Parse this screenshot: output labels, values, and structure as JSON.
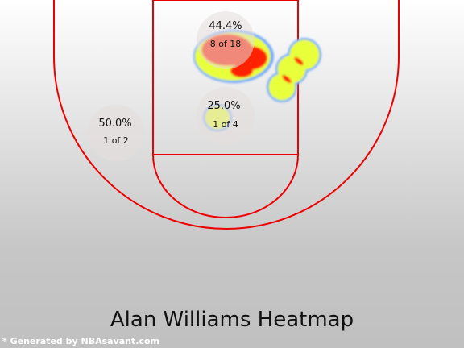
{
  "chart_data": {
    "type": "heatmap",
    "title": "Alan Williams Heatmap",
    "credit": "* Generated by NBAsavant.com",
    "zones": [
      {
        "name": "paint-upper",
        "pct": "44.4%",
        "made_of": "8 of 18"
      },
      {
        "name": "paint-lower",
        "pct": "25.0%",
        "made_of": "1 of 4"
      },
      {
        "name": "left-midrange",
        "pct": "50.0%",
        "made_of": "1 of 2"
      }
    ],
    "colors": {
      "line": "#ee0000",
      "bg_top": "#ffffff",
      "bg_bottom": "#c2c2c2",
      "heat_low": "#e8ff3a",
      "heat_high": "#ff1a00",
      "heat_edge": "#6fa8ff",
      "zone_bubble": "#e6dede"
    }
  }
}
